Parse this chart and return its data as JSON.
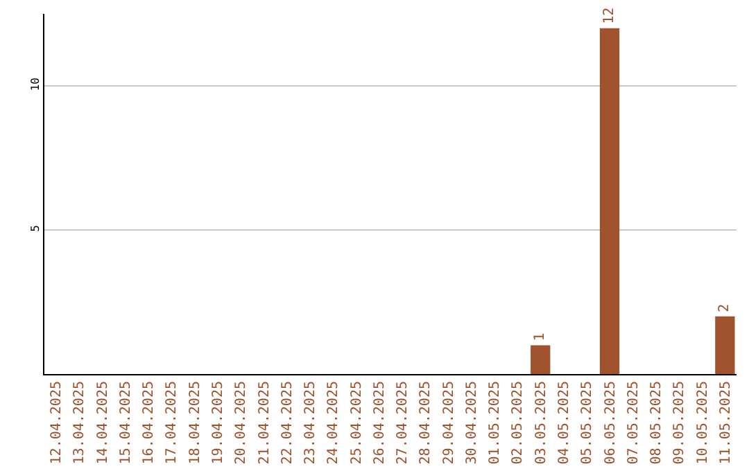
{
  "chart_data": {
    "type": "bar",
    "categories": [
      "12.04.2025",
      "13.04.2025",
      "14.04.2025",
      "15.04.2025",
      "16.04.2025",
      "17.04.2025",
      "18.04.2025",
      "19.04.2025",
      "20.04.2025",
      "21.04.2025",
      "22.04.2025",
      "23.04.2025",
      "24.04.2025",
      "25.04.2025",
      "26.04.2025",
      "27.04.2025",
      "28.04.2025",
      "29.04.2025",
      "30.04.2025",
      "01.05.2025",
      "02.05.2025",
      "03.05.2025",
      "04.05.2025",
      "05.05.2025",
      "06.05.2025",
      "07.05.2025",
      "08.05.2025",
      "09.05.2025",
      "10.05.2025",
      "11.05.2025"
    ],
    "values": [
      0,
      0,
      0,
      0,
      0,
      0,
      0,
      0,
      0,
      0,
      0,
      0,
      0,
      0,
      0,
      0,
      0,
      0,
      0,
      0,
      0,
      1,
      0,
      0,
      12,
      0,
      0,
      0,
      0,
      2
    ],
    "value_labels": [
      null,
      null,
      null,
      null,
      null,
      null,
      null,
      null,
      null,
      null,
      null,
      null,
      null,
      null,
      null,
      null,
      null,
      null,
      null,
      null,
      null,
      "1",
      null,
      null,
      "12",
      null,
      null,
      null,
      null,
      "2"
    ],
    "color": "#a0522d",
    "ylim": [
      0,
      12.5
    ],
    "yticks": [
      5,
      10
    ],
    "grid": "y",
    "legend": false
  }
}
